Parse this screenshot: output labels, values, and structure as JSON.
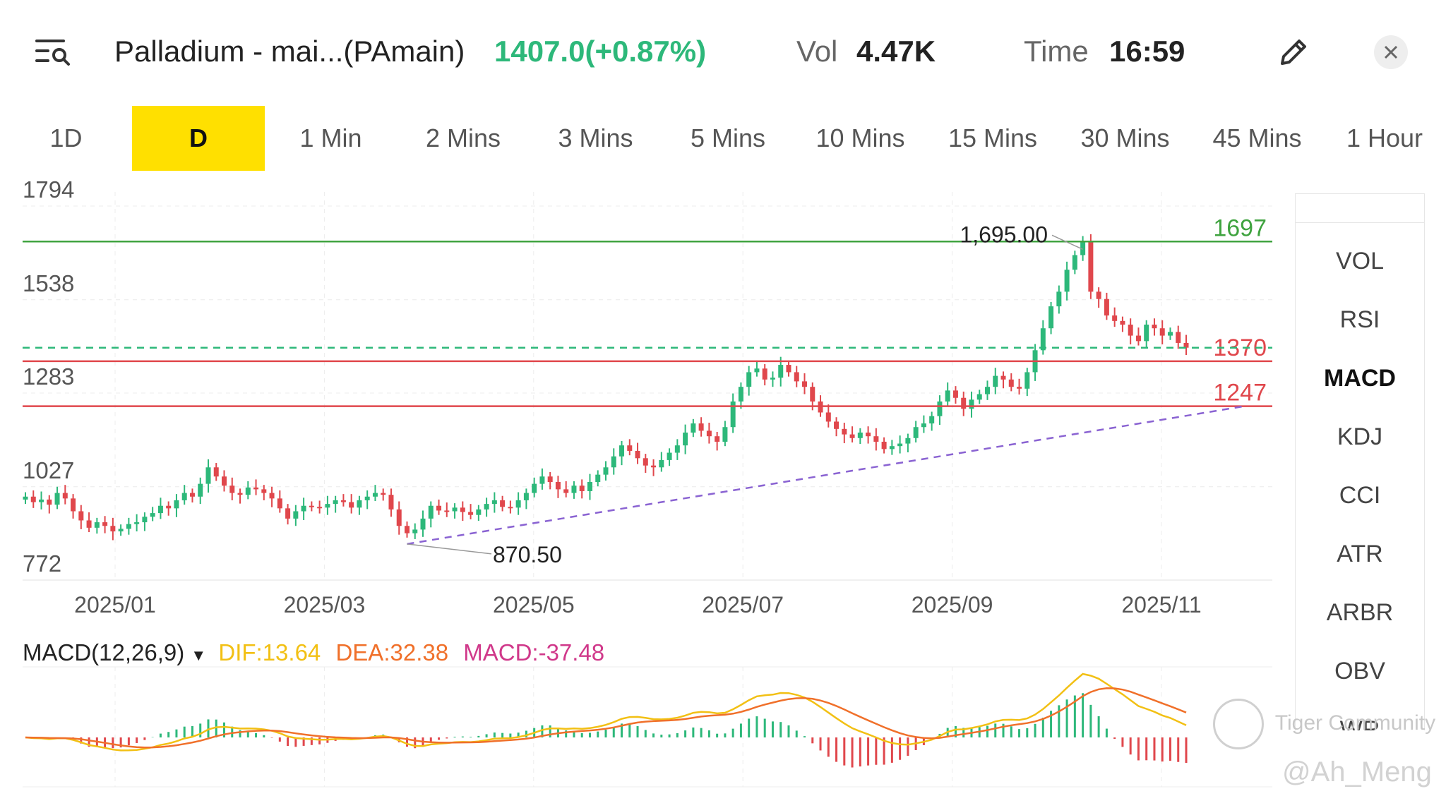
{
  "header": {
    "instrument": "Palladium - mai...(PAmain)",
    "price_change": "1407.0(+0.87%)",
    "vol_label": "Vol",
    "vol_value": "4.47K",
    "time_label": "Time",
    "time_value": "16:59",
    "colors": {
      "up": "#2db87a",
      "down": "#e0474c",
      "accent": "#ffe000"
    }
  },
  "tabs": [
    "1D",
    "D",
    "1 Min",
    "2 Mins",
    "3 Mins",
    "5 Mins",
    "10 Mins",
    "15 Mins",
    "30 Mins",
    "45 Mins",
    "1 Hour"
  ],
  "active_tab": "D",
  "indicators": [
    "VOL",
    "RSI",
    "MACD",
    "KDJ",
    "CCI",
    "ATR",
    "ARBR",
    "OBV",
    "WR"
  ],
  "active_indicator": "MACD",
  "macd_legend": {
    "name": "MACD(12,26,9)",
    "dif": "DIF:13.64",
    "dea": "DEA:32.38",
    "macd": "MACD:-37.48"
  },
  "watermark": {
    "community": "Tiger Community",
    "user": "@Ah_Meng"
  },
  "chart_data": [
    {
      "type": "candlestick",
      "y_ticks": [
        1794,
        1538,
        1283,
        1027,
        772
      ],
      "ylim": [
        772,
        1794
      ],
      "x_ticks": [
        "2025/01",
        "2025/03",
        "2025/05",
        "2025/07",
        "2025/09",
        "2025/11"
      ],
      "grid": true,
      "closes": [
        1000,
        985,
        992,
        978,
        1010,
        995,
        960,
        935,
        915,
        930,
        920,
        905,
        912,
        925,
        930,
        945,
        955,
        975,
        968,
        990,
        1010,
        1000,
        1035,
        1080,
        1055,
        1030,
        1010,
        1005,
        1025,
        1020,
        1010,
        995,
        968,
        940,
        960,
        975,
        972,
        970,
        980,
        990,
        985,
        970,
        990,
        1000,
        1010,
        1005,
        965,
        920,
        900,
        910,
        940,
        975,
        962,
        960,
        970,
        958,
        950,
        965,
        980,
        990,
        972,
        970,
        990,
        1010,
        1035,
        1055,
        1040,
        1020,
        1010,
        1030,
        1015,
        1040,
        1060,
        1080,
        1110,
        1140,
        1125,
        1105,
        1085,
        1080,
        1100,
        1120,
        1140,
        1175,
        1200,
        1180,
        1165,
        1150,
        1190,
        1260,
        1300,
        1340,
        1350,
        1320,
        1325,
        1360,
        1340,
        1315,
        1300,
        1260,
        1230,
        1205,
        1185,
        1170,
        1160,
        1175,
        1165,
        1150,
        1130,
        1138,
        1145,
        1160,
        1190,
        1200,
        1220,
        1260,
        1290,
        1270,
        1240,
        1265,
        1280,
        1300,
        1330,
        1320,
        1300,
        1295,
        1340,
        1400,
        1460,
        1520,
        1560,
        1620,
        1660,
        1695,
        1560,
        1540,
        1495,
        1480,
        1470,
        1440,
        1425,
        1470,
        1460,
        1440,
        1450,
        1420,
        1407
      ],
      "line_levels": [
        {
          "value": 1697,
          "label": "1697",
          "style": "solid",
          "color": "#3fa33f"
        },
        {
          "value": 1370,
          "label": "1370",
          "style": "solid",
          "color": "#e0474c"
        },
        {
          "value": 1247,
          "label": "1247",
          "style": "solid",
          "color": "#e0474c"
        },
        {
          "value": 1407,
          "label": "",
          "style": "dashed",
          "color": "#2db87a"
        }
      ],
      "trendline": {
        "from": 870.5,
        "to": 1247,
        "color": "#8a63d2",
        "style": "dashed"
      },
      "annotations": [
        {
          "label": "1,695.00",
          "value": 1695
        },
        {
          "label": "870.50",
          "value": 870.5
        }
      ]
    },
    {
      "type": "line",
      "title": "MACD(12,26,9)",
      "series": [
        {
          "name": "DIF",
          "color": "#f2c014",
          "last": 13.64
        },
        {
          "name": "DEA",
          "color": "#f0702a",
          "last": 32.38
        },
        {
          "name": "MACD",
          "color": "#d0388a",
          "last": -37.48
        }
      ]
    }
  ]
}
